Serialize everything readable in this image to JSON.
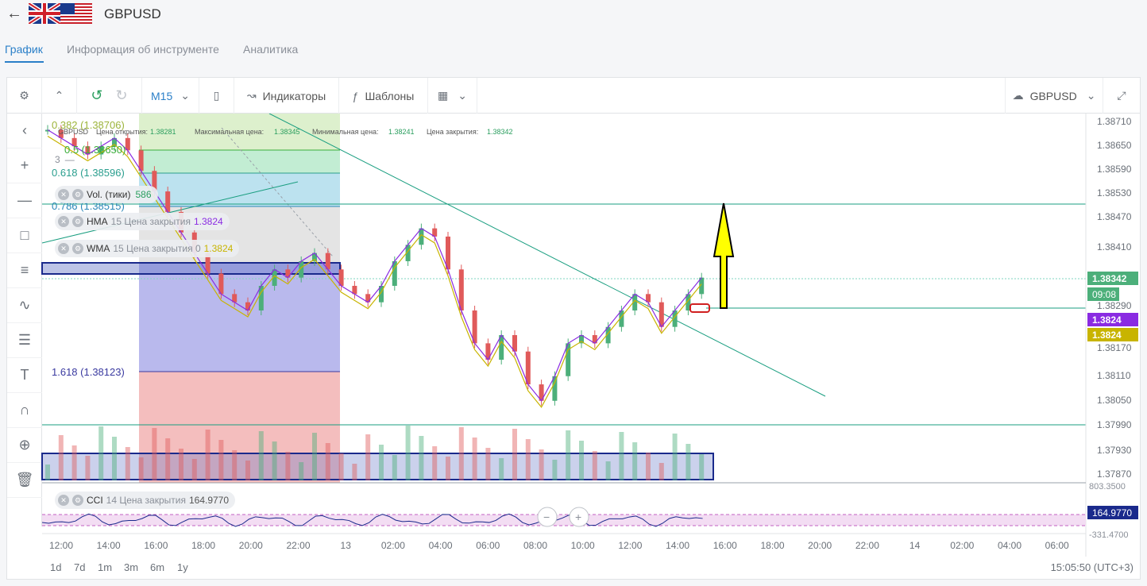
{
  "header": {
    "back_icon": "arrow-left-icon",
    "title": "GBPUSD"
  },
  "tabs": [
    {
      "label": "График",
      "active": true
    },
    {
      "label": "Информация об инструменте",
      "active": false
    },
    {
      "label": "Аналитика",
      "active": false
    }
  ],
  "toolbar": {
    "timeframe": "M15",
    "indicators_label": "Индикаторы",
    "templates_label": "Шаблоны",
    "symbol_select": "GBPUSD"
  },
  "ohlc_info": {
    "symbol": "GBPUSD",
    "open_label": "Цена открытия:",
    "open_value": "1.38281",
    "high_label": "Максимальная цена:",
    "high_value": "1.38345",
    "low_label": "Минимальная цена:",
    "low_value": "1.38241",
    "close_label": "Цена закрытия:",
    "close_value": "1.38342"
  },
  "legend": {
    "counter": "3",
    "vol": {
      "name": "Vol. (тики)",
      "value": "586"
    },
    "hma": {
      "name": "HMA",
      "params": "15 Цена закрытия",
      "value": "1.3824"
    },
    "wma": {
      "name": "WMA",
      "params": "15 Цена закрытия 0",
      "value": "1.3824"
    },
    "cci": {
      "name": "CCI",
      "params": "14 Цена закрытия",
      "value": "164.9770"
    }
  },
  "fib_levels": [
    {
      "label": "0.382 (1.38706)",
      "color": "#9cb43a"
    },
    {
      "label": "0.5 (1.38650)",
      "color": "#3cae3c"
    },
    {
      "label": "0.618 (1.38596)",
      "color": "#2a9e8e"
    },
    {
      "label": "0.786 (1.38515)",
      "color": "#2a86b8"
    },
    {
      "label": "1.618 (1.38123)",
      "color": "#3a3aa0"
    }
  ],
  "price_axis": [
    "1.38710",
    "1.38650",
    "1.38590",
    "1.38530",
    "1.38470",
    "1.38410",
    "1.38290",
    "1.38170",
    "1.38110",
    "1.38050",
    "1.37990",
    "1.37930",
    "1.37870"
  ],
  "price_tags": {
    "close": "1.38342",
    "timer": "09:08",
    "hma": "1.3824",
    "wma": "1.3824"
  },
  "cci_axis": {
    "top": "803.3500",
    "value": "164.9770",
    "bottom": "-331.4700"
  },
  "time_axis": [
    "12:00",
    "14:00",
    "16:00",
    "18:00",
    "20:00",
    "22:00",
    "13",
    "02:00",
    "04:00",
    "06:00",
    "08:00",
    "10:00",
    "12:00",
    "14:00",
    "16:00",
    "18:00",
    "20:00",
    "22:00",
    "14",
    "02:00",
    "04:00",
    "06:00"
  ],
  "ranges": [
    "1d",
    "7d",
    "1m",
    "3m",
    "6m",
    "1y"
  ],
  "clock": "15:05:50 (UTC+3)",
  "colors": {
    "up": "#4caf7a",
    "down": "#e05a5a",
    "accent": "#2a7fc8",
    "hma": "#8a2be2",
    "wma": "#c8b400",
    "arrow": "#ffff00"
  },
  "chart_data": {
    "type": "candlestick",
    "close": [
      1.387,
      1.3868,
      1.3866,
      1.3864,
      1.3866,
      1.3868,
      1.3865,
      1.386,
      1.3855,
      1.385,
      1.3845,
      1.384,
      1.3835,
      1.383,
      1.3828,
      1.3826,
      1.3832,
      1.3836,
      1.3834,
      1.3838,
      1.384,
      1.3836,
      1.3832,
      1.383,
      1.3828,
      1.3832,
      1.3838,
      1.3842,
      1.3846,
      1.3844,
      1.3836,
      1.3826,
      1.3818,
      1.3814,
      1.382,
      1.3816,
      1.3808,
      1.3804,
      1.381,
      1.3818,
      1.382,
      1.3818,
      1.3822,
      1.3826,
      1.383,
      1.3828,
      1.3822,
      1.3826,
      1.383,
      1.3834
    ],
    "ylim": [
      1.3785,
      1.3873
    ]
  }
}
